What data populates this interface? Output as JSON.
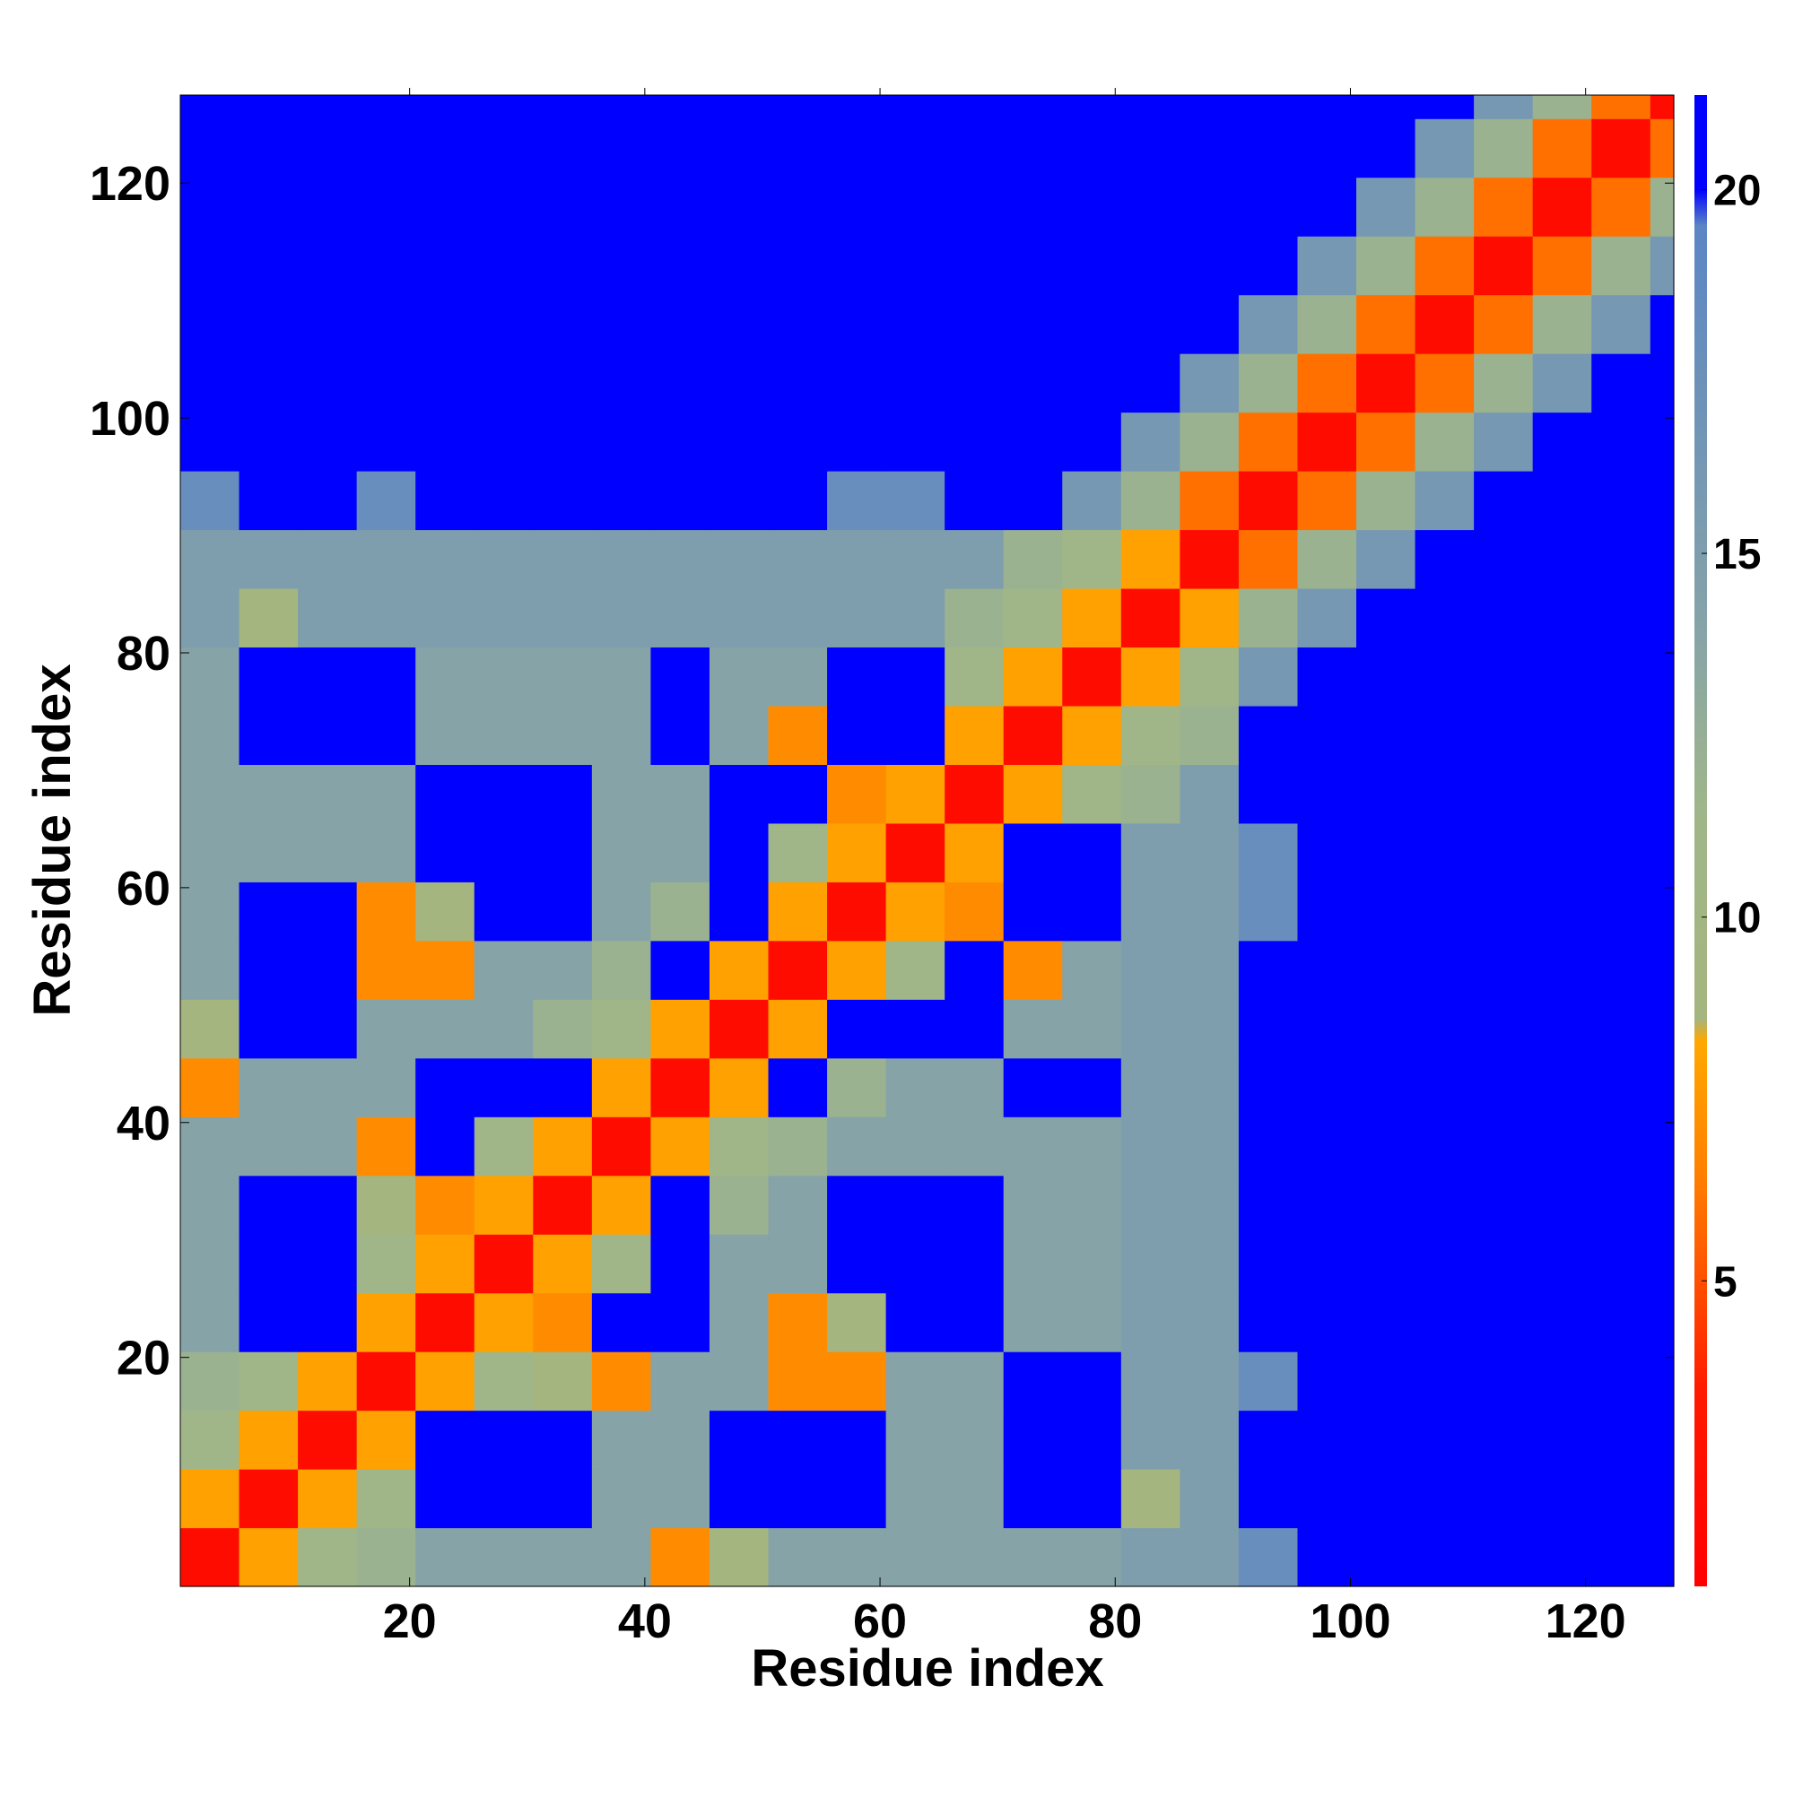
{
  "chart_data": {
    "type": "heatmap",
    "xlabel": "Residue index",
    "ylabel": "Residue index",
    "xbins": [
      0.5,
      5.5,
      10.5,
      15.5,
      20.5,
      25.5,
      30.5,
      35.5,
      40.5,
      45.5,
      50.5,
      55.5,
      60.5,
      65.5,
      70.5,
      75.5,
      80.5,
      85.5,
      90.5,
      95.5,
      100.5,
      105.5,
      110.5,
      115.5,
      120.5,
      125.5,
      127.5
    ],
    "ybins": [
      0.5,
      5.5,
      10.5,
      15.5,
      20.5,
      25.5,
      30.5,
      35.5,
      40.5,
      45.5,
      50.5,
      55.5,
      60.5,
      65.5,
      70.5,
      75.5,
      80.5,
      85.5,
      90.5,
      95.5,
      100.5,
      105.5,
      110.5,
      115.5,
      120.5,
      125.5,
      127.5
    ],
    "z": [
      [
        2,
        8,
        11,
        12,
        14,
        14,
        14,
        14,
        7,
        9,
        14,
        14,
        14,
        14,
        14,
        14,
        15,
        15,
        18,
        21,
        21,
        21,
        21,
        21,
        21,
        21
      ],
      [
        8,
        2,
        8,
        11,
        21,
        21,
        21,
        14,
        14,
        21,
        21,
        21,
        14,
        14,
        21,
        21,
        9,
        15,
        21,
        21,
        21,
        21,
        21,
        21,
        21,
        21
      ],
      [
        11,
        8,
        2,
        8,
        21,
        21,
        21,
        14,
        14,
        21,
        21,
        21,
        14,
        14,
        21,
        21,
        15,
        15,
        21,
        21,
        21,
        21,
        21,
        21,
        21,
        21
      ],
      [
        12,
        11,
        8,
        2,
        8,
        11,
        9,
        7,
        14,
        14,
        7,
        7,
        14,
        14,
        21,
        21,
        15,
        15,
        18,
        21,
        21,
        21,
        21,
        21,
        21,
        21
      ],
      [
        14,
        21,
        21,
        8,
        2,
        8,
        7,
        21,
        21,
        14,
        7,
        9,
        21,
        21,
        14,
        14,
        15,
        15,
        21,
        21,
        21,
        21,
        21,
        21,
        21,
        21
      ],
      [
        14,
        21,
        21,
        11,
        8,
        2,
        8,
        11,
        21,
        14,
        14,
        21,
        21,
        21,
        14,
        14,
        15,
        15,
        21,
        21,
        21,
        21,
        21,
        21,
        21,
        21
      ],
      [
        14,
        21,
        21,
        9,
        7,
        8,
        2,
        8,
        21,
        12,
        14,
        21,
        21,
        21,
        14,
        14,
        15,
        15,
        21,
        21,
        21,
        21,
        21,
        21,
        21,
        21
      ],
      [
        14,
        14,
        14,
        7,
        21,
        11,
        8,
        2,
        8,
        11,
        12,
        14,
        14,
        14,
        14,
        14,
        15,
        15,
        21,
        21,
        21,
        21,
        21,
        21,
        21,
        21
      ],
      [
        7,
        14,
        14,
        14,
        21,
        21,
        21,
        8,
        2,
        8,
        21,
        12,
        14,
        14,
        21,
        21,
        15,
        15,
        21,
        21,
        21,
        21,
        21,
        21,
        21,
        21
      ],
      [
        9,
        21,
        21,
        14,
        14,
        14,
        12,
        11,
        8,
        2,
        8,
        21,
        21,
        21,
        14,
        14,
        15,
        15,
        21,
        21,
        21,
        21,
        21,
        21,
        21,
        21
      ],
      [
        14,
        21,
        21,
        7,
        7,
        14,
        14,
        12,
        21,
        8,
        2,
        8,
        11,
        21,
        7,
        14,
        15,
        15,
        21,
        21,
        21,
        21,
        21,
        21,
        21,
        21
      ],
      [
        14,
        21,
        21,
        7,
        9,
        21,
        21,
        14,
        12,
        21,
        8,
        2,
        8,
        7,
        21,
        21,
        15,
        15,
        18,
        21,
        21,
        21,
        21,
        21,
        21,
        21
      ],
      [
        14,
        14,
        14,
        14,
        21,
        21,
        21,
        14,
        14,
        21,
        11,
        8,
        2,
        8,
        21,
        21,
        15,
        15,
        18,
        21,
        21,
        21,
        21,
        21,
        21,
        21
      ],
      [
        14,
        14,
        14,
        14,
        21,
        21,
        21,
        14,
        14,
        21,
        21,
        7,
        8,
        2,
        8,
        11,
        12,
        15,
        21,
        21,
        21,
        21,
        21,
        21,
        21,
        21
      ],
      [
        14,
        21,
        21,
        21,
        14,
        14,
        14,
        14,
        21,
        14,
        7,
        21,
        21,
        8,
        2,
        8,
        11,
        12,
        21,
        21,
        21,
        21,
        21,
        21,
        21,
        21
      ],
      [
        14,
        21,
        21,
        21,
        14,
        14,
        14,
        14,
        21,
        14,
        14,
        21,
        21,
        11,
        8,
        2,
        8,
        11,
        16,
        21,
        21,
        21,
        21,
        21,
        21,
        21
      ],
      [
        15,
        9,
        15,
        15,
        15,
        15,
        15,
        15,
        15,
        15,
        15,
        15,
        15,
        12,
        11,
        8,
        2,
        8,
        12,
        16,
        21,
        21,
        21,
        21,
        21,
        21
      ],
      [
        15,
        15,
        15,
        15,
        15,
        15,
        15,
        15,
        15,
        15,
        15,
        15,
        15,
        15,
        12,
        11,
        8,
        2,
        6,
        12,
        16,
        21,
        21,
        21,
        21,
        21
      ],
      [
        18,
        21,
        21,
        18,
        21,
        21,
        21,
        21,
        21,
        21,
        21,
        18,
        18,
        21,
        21,
        16,
        12,
        6,
        2,
        6,
        12,
        16,
        21,
        21,
        21,
        21
      ],
      [
        21,
        21,
        21,
        21,
        21,
        21,
        21,
        21,
        21,
        21,
        21,
        21,
        21,
        21,
        21,
        21,
        16,
        12,
        6,
        2,
        6,
        12,
        16,
        21,
        21,
        21
      ],
      [
        21,
        21,
        21,
        21,
        21,
        21,
        21,
        21,
        21,
        21,
        21,
        21,
        21,
        21,
        21,
        21,
        21,
        16,
        12,
        6,
        2,
        6,
        12,
        16,
        21,
        21
      ],
      [
        21,
        21,
        21,
        21,
        21,
        21,
        21,
        21,
        21,
        21,
        21,
        21,
        21,
        21,
        21,
        21,
        21,
        21,
        16,
        12,
        6,
        2,
        6,
        12,
        16,
        21
      ],
      [
        21,
        21,
        21,
        21,
        21,
        21,
        21,
        21,
        21,
        21,
        21,
        21,
        21,
        21,
        21,
        21,
        21,
        21,
        21,
        16,
        12,
        6,
        2,
        6,
        12,
        16
      ],
      [
        21,
        21,
        21,
        21,
        21,
        21,
        21,
        21,
        21,
        21,
        21,
        21,
        21,
        21,
        21,
        21,
        21,
        21,
        21,
        21,
        16,
        12,
        6,
        2,
        6,
        12
      ],
      [
        21,
        21,
        21,
        21,
        21,
        21,
        21,
        21,
        21,
        21,
        21,
        21,
        21,
        21,
        21,
        21,
        21,
        21,
        21,
        21,
        21,
        16,
        12,
        6,
        2,
        6
      ],
      [
        21,
        21,
        21,
        21,
        21,
        21,
        21,
        21,
        21,
        21,
        21,
        21,
        21,
        21,
        21,
        21,
        21,
        21,
        21,
        21,
        21,
        21,
        16,
        12,
        6,
        2
      ]
    ],
    "xlim": [
      0.5,
      127.5
    ],
    "ylim": [
      0.5,
      127.5
    ],
    "xticks": [
      20,
      40,
      60,
      80,
      100,
      120
    ],
    "yticks": [
      20,
      40,
      60,
      80,
      100,
      120
    ],
    "colorbar": {
      "lim": [
        0.8,
        21.3
      ],
      "ticks": [
        5,
        10,
        15,
        20
      ],
      "stops": [
        {
          "value": 0.8,
          "color": "#ff0000"
        },
        {
          "value": 3.5,
          "color": "#ff1a00"
        },
        {
          "value": 5,
          "color": "#ff5000"
        },
        {
          "value": 6.5,
          "color": "#ff8000"
        },
        {
          "value": 8.3,
          "color": "#ffa800"
        },
        {
          "value": 8.6,
          "color": "#a5b57e"
        },
        {
          "value": 11.5,
          "color": "#9fb68a"
        },
        {
          "value": 14,
          "color": "#86a3a8"
        },
        {
          "value": 19.5,
          "color": "#5b86c4"
        },
        {
          "value": 20,
          "color": "#0000ff"
        },
        {
          "value": 21.3,
          "color": "#0000ff"
        }
      ]
    }
  }
}
